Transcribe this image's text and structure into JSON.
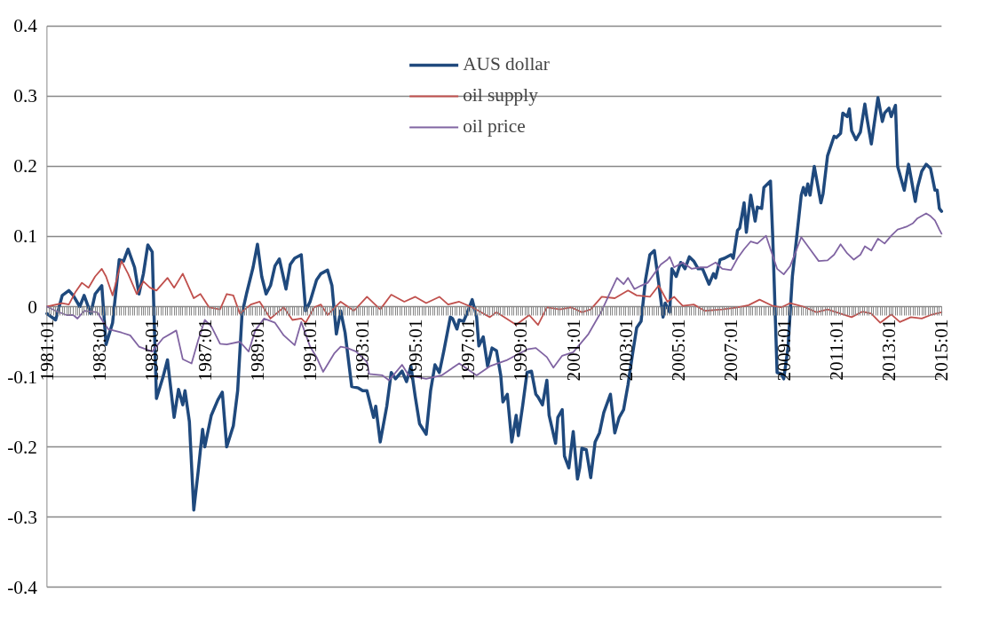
{
  "chart_data": {
    "type": "line",
    "xlim": [
      "1981-01",
      "2015-01"
    ],
    "xticks": [
      {
        "value": "1981-01",
        "label": "1981:01"
      },
      {
        "value": "1983-01",
        "label": "1983:01"
      },
      {
        "value": "1985-01",
        "label": "1985:01"
      },
      {
        "value": "1987-01",
        "label": "1987:01"
      },
      {
        "value": "1989-01",
        "label": "1989:01"
      },
      {
        "value": "1991-01",
        "label": "1991:01"
      },
      {
        "value": "1993-01",
        "label": "1993:01"
      },
      {
        "value": "1995-01",
        "label": "1995:01"
      },
      {
        "value": "1997-01",
        "label": "1997:01"
      },
      {
        "value": "1999-01",
        "label": "1999:01"
      },
      {
        "value": "2001-01",
        "label": "2001:01"
      },
      {
        "value": "2003-01",
        "label": "2003:01"
      },
      {
        "value": "2005-01",
        "label": "2005:01"
      },
      {
        "value": "2007-01",
        "label": "2007:01"
      },
      {
        "value": "2009-01",
        "label": "2009:01"
      },
      {
        "value": "2011-01",
        "label": "2011:01"
      },
      {
        "value": "2013-01",
        "label": "2013:01"
      },
      {
        "value": "2015-01",
        "label": "2015:01"
      }
    ],
    "ylim": [
      -0.4,
      0.4
    ],
    "yticks": [
      -0.4,
      -0.3,
      -0.2,
      -0.1,
      0,
      0.1,
      0.2,
      0.3,
      0.4
    ],
    "grid": "y",
    "legend": "top",
    "marker": "none",
    "line_style": "solid",
    "series": [
      {
        "name": "AUS dollar",
        "color": "#1f497d",
        "x": [
          "1981-01",
          "1981-05",
          "1981-08",
          "1981-11",
          "1982-01",
          "1982-04",
          "1982-06",
          "1982-09",
          "1982-11",
          "1983-02",
          "1983-04",
          "1983-07",
          "1983-10",
          "1983-12",
          "1984-02",
          "1984-05",
          "1984-07",
          "1984-09",
          "1984-11",
          "1985-01",
          "1985-03",
          "1985-06",
          "1985-08",
          "1985-11",
          "1986-01",
          "1986-03",
          "1986-04",
          "1986-06",
          "1986-08",
          "1986-10",
          "1986-12",
          "1987-01",
          "1987-04",
          "1987-07",
          "1987-09",
          "1987-11",
          "1988-02",
          "1988-04",
          "1988-06",
          "1988-08",
          "1988-11",
          "1989-01",
          "1989-03",
          "1989-05",
          "1989-07",
          "1989-09",
          "1989-11",
          "1990-02",
          "1990-04",
          "1990-06",
          "1990-09",
          "1990-11",
          "1991-01",
          "1991-04",
          "1991-06",
          "1991-09",
          "1991-11",
          "1992-01",
          "1992-03",
          "1992-05",
          "1992-08",
          "1992-11",
          "1993-01",
          "1993-03",
          "1993-06",
          "1993-07",
          "1993-09",
          "1993-12",
          "1994-02",
          "1994-04",
          "1994-07",
          "1994-09",
          "1994-11",
          "1995-01",
          "1995-03",
          "1995-06",
          "1995-08",
          "1995-10",
          "1995-12",
          "1996-02",
          "1996-05",
          "1996-06",
          "1996-08",
          "1996-09",
          "1996-11",
          "1997-01",
          "1997-03",
          "1997-05",
          "1997-06",
          "1997-08",
          "1997-10",
          "1997-12",
          "1998-02",
          "1998-04",
          "1998-05",
          "1998-07",
          "1998-09",
          "1998-11",
          "1998-12",
          "1999-02",
          "1999-04",
          "1999-06",
          "1999-08",
          "1999-09",
          "1999-11",
          "2000-01",
          "2000-02",
          "2000-05",
          "2000-06",
          "2000-08",
          "2000-09",
          "2000-11",
          "2001-01",
          "2001-03",
          "2001-04",
          "2001-05",
          "2001-07",
          "2001-09",
          "2001-11",
          "2002-01",
          "2002-03",
          "2002-06",
          "2002-08",
          "2002-10",
          "2002-12",
          "2003-02",
          "2003-04",
          "2003-06",
          "2003-08",
          "2003-10",
          "2003-12",
          "2004-02",
          "2004-04",
          "2004-06",
          "2004-07",
          "2004-09",
          "2004-10",
          "2004-12",
          "2005-02",
          "2005-04",
          "2005-06",
          "2005-08",
          "2005-10",
          "2005-12",
          "2006-03",
          "2006-05",
          "2006-06",
          "2006-08",
          "2006-10",
          "2007-01",
          "2007-02",
          "2007-04",
          "2007-05",
          "2007-07",
          "2007-08",
          "2007-10",
          "2007-12",
          "2008-01",
          "2008-03",
          "2008-04",
          "2008-07",
          "2008-08",
          "2008-10",
          "2008-12",
          "2009-01",
          "2009-03",
          "2009-05",
          "2009-07",
          "2009-09",
          "2009-10",
          "2009-11",
          "2009-12",
          "2010-01",
          "2010-03",
          "2010-06",
          "2010-07",
          "2010-09",
          "2010-12",
          "2011-01",
          "2011-03",
          "2011-04",
          "2011-06",
          "2011-07",
          "2011-08",
          "2011-10",
          "2011-12",
          "2012-02",
          "2012-03",
          "2012-05",
          "2012-07",
          "2012-08",
          "2012-10",
          "2012-11",
          "2013-01",
          "2013-02",
          "2013-04",
          "2013-05",
          "2013-08",
          "2013-10",
          "2014-01",
          "2014-02",
          "2014-04",
          "2014-06",
          "2014-08",
          "2014-10",
          "2014-11",
          "2014-12",
          "2015-01"
        ],
        "values": [
          -0.01,
          -0.019,
          0.016,
          0.023,
          0.016,
          0.0,
          0.016,
          -0.01,
          0.018,
          0.03,
          -0.054,
          -0.023,
          0.067,
          0.065,
          0.082,
          0.056,
          0.018,
          0.047,
          0.088,
          0.078,
          -0.131,
          -0.1,
          -0.076,
          -0.158,
          -0.118,
          -0.14,
          -0.12,
          -0.164,
          -0.29,
          -0.235,
          -0.175,
          -0.2,
          -0.155,
          -0.133,
          -0.122,
          -0.2,
          -0.17,
          -0.12,
          -0.01,
          0.018,
          0.056,
          0.089,
          0.043,
          0.018,
          0.03,
          0.058,
          0.068,
          0.025,
          0.06,
          0.069,
          0.074,
          -0.006,
          0.007,
          0.038,
          0.047,
          0.052,
          0.03,
          -0.039,
          -0.006,
          -0.037,
          -0.114,
          -0.116,
          -0.12,
          -0.12,
          -0.158,
          -0.142,
          -0.193,
          -0.142,
          -0.094,
          -0.103,
          -0.092,
          -0.107,
          -0.085,
          -0.129,
          -0.167,
          -0.182,
          -0.12,
          -0.083,
          -0.094,
          -0.063,
          -0.015,
          -0.017,
          -0.032,
          -0.019,
          -0.021,
          -0.006,
          0.01,
          -0.015,
          -0.056,
          -0.043,
          -0.085,
          -0.059,
          -0.063,
          -0.098,
          -0.136,
          -0.125,
          -0.193,
          -0.155,
          -0.184,
          -0.14,
          -0.094,
          -0.092,
          -0.125,
          -0.129,
          -0.14,
          -0.105,
          -0.155,
          -0.195,
          -0.158,
          -0.147,
          -0.213,
          -0.23,
          -0.178,
          -0.246,
          -0.23,
          -0.202,
          -0.204,
          -0.244,
          -0.193,
          -0.18,
          -0.151,
          -0.125,
          -0.18,
          -0.158,
          -0.147,
          -0.111,
          -0.07,
          -0.03,
          -0.021,
          0.038,
          0.074,
          0.08,
          0.034,
          -0.015,
          0.005,
          -0.008,
          0.054,
          0.043,
          0.063,
          0.054,
          0.071,
          0.065,
          0.054,
          0.054,
          0.032,
          0.047,
          0.041,
          0.067,
          0.069,
          0.074,
          0.069,
          0.109,
          0.112,
          0.148,
          0.106,
          0.159,
          0.122,
          0.142,
          0.14,
          0.17,
          0.179,
          0.1,
          -0.094,
          -0.096,
          -0.103,
          -0.059,
          0.043,
          0.1,
          0.159,
          0.17,
          0.159,
          0.175,
          0.159,
          0.2,
          0.148,
          0.161,
          0.215,
          0.243,
          0.241,
          0.247,
          0.276,
          0.271,
          0.282,
          0.251,
          0.238,
          0.249,
          0.289,
          0.269,
          0.232,
          0.276,
          0.298,
          0.264,
          0.276,
          0.283,
          0.271,
          0.287,
          0.2,
          0.166,
          0.203,
          0.15,
          0.17,
          0.193,
          0.203,
          0.197,
          0.166,
          0.166,
          0.14,
          0.136
        ]
      },
      {
        "name": "oil supply",
        "color": "#c0504d",
        "x": [
          "1981-01",
          "1981-08",
          "1981-11",
          "1982-02",
          "1982-05",
          "1982-08",
          "1982-11",
          "1983-02",
          "1983-04",
          "1983-07",
          "1983-11",
          "1984-02",
          "1984-06",
          "1984-09",
          "1984-12",
          "1985-03",
          "1985-08",
          "1985-11",
          "1986-03",
          "1986-08",
          "1986-11",
          "1987-03",
          "1987-08",
          "1987-11",
          "1988-02",
          "1988-05",
          "1988-10",
          "1989-02",
          "1989-07",
          "1990-01",
          "1990-05",
          "1990-09",
          "1990-11",
          "1991-03",
          "1991-06",
          "1991-09",
          "1992-03",
          "1992-09",
          "1993-03",
          "1993-09",
          "1994-02",
          "1994-08",
          "1995-01",
          "1995-06",
          "1995-12",
          "1996-04",
          "1996-09",
          "1997-03",
          "1997-11",
          "1998-02",
          "1998-11",
          "1999-05",
          "1999-09",
          "2000-01",
          "2000-07",
          "2000-12",
          "2001-05",
          "2001-09",
          "2002-02",
          "2002-08",
          "2003-02",
          "2003-06",
          "2003-12",
          "2004-04",
          "2004-08",
          "2004-11",
          "2005-03",
          "2005-08",
          "2006-01",
          "2006-09",
          "2007-04",
          "2007-09",
          "2008-02",
          "2008-08",
          "2008-12",
          "2009-04",
          "2009-10",
          "2010-04",
          "2010-09",
          "2011-03",
          "2011-08",
          "2012-01",
          "2012-05",
          "2012-09",
          "2013-02",
          "2013-06",
          "2013-11",
          "2014-04",
          "2014-08",
          "2015-01"
        ],
        "values": [
          0.0,
          0.005,
          0.003,
          0.021,
          0.034,
          0.027,
          0.043,
          0.054,
          0.043,
          0.016,
          0.065,
          0.047,
          0.018,
          0.036,
          0.027,
          0.023,
          0.041,
          0.027,
          0.047,
          0.012,
          0.018,
          -0.001,
          -0.004,
          0.018,
          0.016,
          -0.01,
          0.003,
          0.007,
          -0.017,
          -0.001,
          -0.019,
          -0.017,
          -0.023,
          -0.001,
          0.003,
          -0.012,
          0.007,
          -0.006,
          0.014,
          -0.004,
          0.017,
          0.007,
          0.014,
          0.005,
          0.014,
          0.003,
          0.007,
          -0.001,
          -0.015,
          -0.008,
          -0.026,
          -0.012,
          -0.026,
          -0.001,
          -0.004,
          -0.001,
          -0.008,
          -0.004,
          0.014,
          0.012,
          0.023,
          0.016,
          0.014,
          0.03,
          0.007,
          0.014,
          0.001,
          0.003,
          -0.006,
          -0.004,
          -0.001,
          0.002,
          0.01,
          0.001,
          -0.001,
          0.005,
          0.0,
          -0.008,
          -0.004,
          -0.01,
          -0.015,
          -0.007,
          -0.01,
          -0.023,
          -0.011,
          -0.022,
          -0.015,
          -0.017,
          -0.012,
          -0.008
        ]
      },
      {
        "name": "oil price",
        "color": "#8064a2",
        "x": [
          "1981-01",
          "1981-05",
          "1981-10",
          "1982-01",
          "1982-03",
          "1982-06",
          "1982-12",
          "1983-03",
          "1983-05",
          "1983-11",
          "1984-03",
          "1984-07",
          "1985-01",
          "1985-06",
          "1985-12",
          "1986-03",
          "1986-07",
          "1986-10",
          "1987-01",
          "1987-04",
          "1987-08",
          "1987-11",
          "1988-05",
          "1988-09",
          "1988-12",
          "1989-04",
          "1989-09",
          "1990-01",
          "1990-06",
          "1990-09",
          "1991-01",
          "1991-04",
          "1991-07",
          "1991-12",
          "1992-03",
          "1992-06",
          "1992-10",
          "1993-03",
          "1993-04",
          "1993-10",
          "1994-01",
          "1994-07",
          "1994-10",
          "1995-06",
          "1996-01",
          "1996-09",
          "1997-05",
          "1997-11",
          "1998-07",
          "1999-04",
          "1999-08",
          "2000-01",
          "2000-04",
          "2000-08",
          "2001-01",
          "2001-08",
          "2002-02",
          "2002-06",
          "2002-09",
          "2002-12",
          "2003-02",
          "2003-05",
          "2003-08",
          "2003-11",
          "2004-05",
          "2004-08",
          "2004-09",
          "2004-11",
          "2005-03",
          "2005-07",
          "2005-11",
          "2006-02",
          "2006-06",
          "2006-09",
          "2007-01",
          "2007-04",
          "2007-07",
          "2007-10",
          "2008-01",
          "2008-05",
          "2008-07",
          "2008-10",
          "2009-01",
          "2009-04",
          "2009-07",
          "2009-09",
          "2010-01",
          "2010-05",
          "2010-09",
          "2010-12",
          "2011-03",
          "2011-06",
          "2011-09",
          "2011-12",
          "2012-02",
          "2012-05",
          "2012-08",
          "2012-11",
          "2013-02",
          "2013-05",
          "2013-09",
          "2013-12",
          "2014-02",
          "2014-06",
          "2014-08",
          "2014-10",
          "2014-12",
          "2015-01"
        ],
        "values": [
          0.0,
          -0.006,
          -0.012,
          -0.012,
          -0.017,
          -0.006,
          -0.008,
          -0.023,
          -0.032,
          -0.037,
          -0.041,
          -0.057,
          -0.064,
          -0.045,
          -0.034,
          -0.075,
          -0.081,
          -0.048,
          -0.019,
          -0.028,
          -0.053,
          -0.054,
          -0.05,
          -0.064,
          -0.034,
          -0.017,
          -0.023,
          -0.041,
          -0.055,
          -0.022,
          -0.057,
          -0.072,
          -0.093,
          -0.067,
          -0.057,
          -0.059,
          -0.064,
          -0.079,
          -0.096,
          -0.098,
          -0.105,
          -0.083,
          -0.098,
          -0.103,
          -0.098,
          -0.081,
          -0.098,
          -0.085,
          -0.076,
          -0.061,
          -0.059,
          -0.072,
          -0.087,
          -0.07,
          -0.065,
          -0.039,
          -0.006,
          0.021,
          0.041,
          0.032,
          0.041,
          0.025,
          0.03,
          0.034,
          0.06,
          0.067,
          0.071,
          0.056,
          0.063,
          0.054,
          0.056,
          0.056,
          0.063,
          0.054,
          0.052,
          0.069,
          0.082,
          0.093,
          0.09,
          0.101,
          0.082,
          0.054,
          0.046,
          0.058,
          0.082,
          0.099,
          0.082,
          0.065,
          0.066,
          0.074,
          0.089,
          0.076,
          0.067,
          0.074,
          0.086,
          0.08,
          0.097,
          0.09,
          0.101,
          0.11,
          0.114,
          0.119,
          0.126,
          0.133,
          0.129,
          0.123,
          0.11,
          0.104
        ]
      }
    ]
  }
}
